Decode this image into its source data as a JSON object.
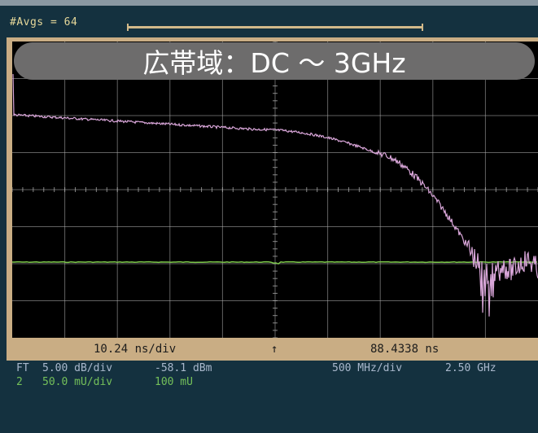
{
  "status": {
    "avgs_label": "#Avgs = 64"
  },
  "banner": {
    "text": "広帯域：DC ～ 3GHz"
  },
  "axis_bar": {
    "time_per_div": "10.24 ns/div",
    "trigger_marker": "↑",
    "time_position": "88.4338 ns"
  },
  "readouts": {
    "ch1": {
      "label": "FT",
      "scale": "5.00 dB/div",
      "level": "-58.1 dBm",
      "freq_per_div": "500 MHz/div",
      "freq_center": "2.50 GHz"
    },
    "ch2": {
      "label": "2",
      "scale": "50.0 mU/div",
      "offset": "100 mU"
    }
  },
  "colors": {
    "background": "#14313f",
    "trace_fft": "#d9a6d9",
    "trace_ch2": "#7cc74a",
    "grid": "#b0b0b0",
    "frame": "#c9ad84"
  }
}
